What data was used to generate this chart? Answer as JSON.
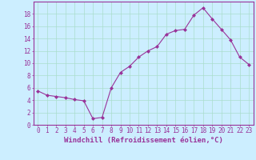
{
  "x": [
    0,
    1,
    2,
    3,
    4,
    5,
    6,
    7,
    8,
    9,
    10,
    11,
    12,
    13,
    14,
    15,
    16,
    17,
    18,
    19,
    20,
    21,
    22,
    23
  ],
  "y": [
    5.5,
    4.8,
    4.6,
    4.4,
    4.1,
    3.9,
    1.0,
    1.2,
    6.0,
    8.5,
    9.5,
    11.0,
    12.0,
    12.7,
    14.7,
    15.3,
    15.5,
    17.8,
    19.0,
    17.2,
    15.5,
    13.8,
    11.0,
    9.8
  ],
  "line_color": "#993399",
  "marker": "D",
  "marker_size": 2,
  "bg_color": "#cceeff",
  "grid_color": "#aaddcc",
  "xlabel": "Windchill (Refroidissement éolien,°C)",
  "ylim": [
    0,
    20
  ],
  "xlim": [
    -0.5,
    23.5
  ],
  "yticks": [
    0,
    2,
    4,
    6,
    8,
    10,
    12,
    14,
    16,
    18
  ],
  "xticks": [
    0,
    1,
    2,
    3,
    4,
    5,
    6,
    7,
    8,
    9,
    10,
    11,
    12,
    13,
    14,
    15,
    16,
    17,
    18,
    19,
    20,
    21,
    22,
    23
  ],
  "tick_color": "#993399",
  "label_color": "#993399",
  "xlabel_fontsize": 6.5,
  "tick_fontsize": 5.5,
  "ylabel_fontsize": 6
}
